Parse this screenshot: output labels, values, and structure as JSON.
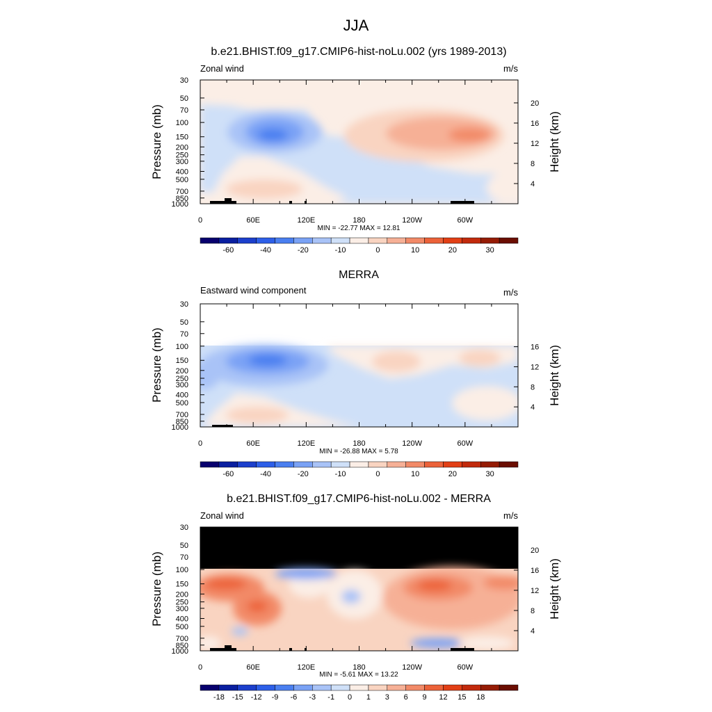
{
  "page": {
    "title": "JJA"
  },
  "chart_data": [
    {
      "type": "heatmap",
      "title": "b.e21.BHIST.f09_g17.CMIP6-hist-noLu.002 (yrs 1989-2013)",
      "left_label": "Zonal wind",
      "units": "m/s",
      "ylabel": "Pressure (mb)",
      "ylabel_right": "Height (km)",
      "x_ticks": [
        "0",
        "60E",
        "120E",
        "180",
        "120W",
        "60W"
      ],
      "y_ticks": [
        "30",
        "50",
        "70",
        "100",
        "150",
        "200",
        "250",
        "300",
        "400",
        "500",
        "700",
        "850",
        "1000"
      ],
      "y_ticks_right": [
        "20",
        "16",
        "12",
        "8",
        "4"
      ],
      "xlim": [
        0,
        360
      ],
      "ylim_mb": [
        1000,
        30
      ],
      "stats": "MIN = -22.77  MAX =  12.81",
      "min": -22.77,
      "max": 12.81,
      "colorbar_labels": [
        "-60",
        "-40",
        "-20",
        "-10",
        "0",
        "10",
        "20",
        "30"
      ],
      "colorbar_colors": [
        "#08006e",
        "#0a1fa0",
        "#1c3fcc",
        "#2d5fe8",
        "#4a7ff0",
        "#7aa2f5",
        "#a9c3f7",
        "#cfe0f8",
        "#fbeee6",
        "#f9d4c1",
        "#f6b096",
        "#f28a68",
        "#ec6239",
        "#e23f15",
        "#c22a0c",
        "#951c05",
        "#6b0e02"
      ],
      "blobs": [
        {
          "lon": 0,
          "mb_top": 70,
          "mb_bottom": 1000,
          "lon_end": 360,
          "value": -1,
          "shape": "background"
        },
        {
          "lon": 85,
          "mb": 140,
          "value": -22.77
        },
        {
          "lon": 95,
          "mb": 200,
          "value": -12
        },
        {
          "lon": 190,
          "mb": 150,
          "value": 5
        },
        {
          "lon": 290,
          "mb": 150,
          "value": 12.81
        },
        {
          "lon": 65,
          "mb": 700,
          "value": 8
        },
        {
          "lon": 40,
          "mb": 350,
          "value": 4
        }
      ]
    },
    {
      "type": "heatmap",
      "title": "MERRA",
      "left_label": "Eastward wind component",
      "units": "m/s",
      "ylabel": "Pressure (mb)",
      "ylabel_right": "Height (km)",
      "x_ticks": [
        "0",
        "60E",
        "120E",
        "180",
        "120W",
        "60W"
      ],
      "y_ticks": [
        "30",
        "50",
        "70",
        "100",
        "150",
        "200",
        "250",
        "300",
        "400",
        "500",
        "700",
        "850",
        "1000"
      ],
      "y_ticks_right": [
        "16",
        "12",
        "8",
        "4"
      ],
      "xlim": [
        0,
        360
      ],
      "ylim_mb": [
        1000,
        30
      ],
      "stats": "MIN = -26.88  MAX =   5.78",
      "min": -26.88,
      "max": 5.78,
      "colorbar_labels": [
        "-60",
        "-40",
        "-20",
        "-10",
        "0",
        "10",
        "20",
        "30"
      ],
      "blobs": [
        {
          "lon": 0,
          "mb_top": 100,
          "mb_bottom": 1000,
          "lon_end": 360,
          "value": -1,
          "shape": "background"
        },
        {
          "lon": 80,
          "mb": 150,
          "value": -26.88
        },
        {
          "lon": 60,
          "mb": 180,
          "value": -15
        },
        {
          "lon": 210,
          "mb": 140,
          "value": 5.78
        },
        {
          "lon": 330,
          "mb": 180,
          "value": 4
        },
        {
          "lon": 60,
          "mb": 700,
          "value": 5
        }
      ]
    },
    {
      "type": "heatmap",
      "title": "b.e21.BHIST.f09_g17.CMIP6-hist-noLu.002 - MERRA",
      "left_label": "Zonal wind",
      "units": "m/s",
      "ylabel": "Pressure (mb)",
      "ylabel_right": "Height (km)",
      "x_ticks": [
        "0",
        "60E",
        "120E",
        "180",
        "120W",
        "60W"
      ],
      "y_ticks": [
        "30",
        "50",
        "70",
        "100",
        "150",
        "200",
        "250",
        "300",
        "400",
        "500",
        "700",
        "850",
        "1000"
      ],
      "y_ticks_right": [
        "20",
        "16",
        "12",
        "8",
        "4"
      ],
      "xlim": [
        0,
        360
      ],
      "ylim_mb": [
        1000,
        30
      ],
      "stats": "MIN = -5.61  MAX =  13.22",
      "min": -5.61,
      "max": 13.22,
      "colorbar_labels": [
        "-18",
        "-15",
        "-12",
        "-9",
        "-6",
        "-3",
        "-1",
        "0",
        "1",
        "3",
        "6",
        "9",
        "12",
        "15",
        "18"
      ],
      "colorbar_colors": [
        "#08006e",
        "#0a1fa0",
        "#1c3fcc",
        "#2d5fe8",
        "#4a7ff0",
        "#7aa2f5",
        "#a9c3f7",
        "#cfe0f8",
        "#fbeee6",
        "#f9d4c1",
        "#f6b096",
        "#f28a68",
        "#ec6239",
        "#e23f15",
        "#c22a0c",
        "#951c05",
        "#6b0e02"
      ],
      "blobs": [
        {
          "lon": 0,
          "mb_top": 100,
          "mb_bottom": 1000,
          "lon_end": 360,
          "value": 2,
          "shape": "background"
        },
        {
          "lon": 30,
          "mb": 150,
          "value": 13.22
        },
        {
          "lon": 70,
          "mb": 300,
          "value": 9
        },
        {
          "lon": 270,
          "mb": 150,
          "value": 12
        },
        {
          "lon": 330,
          "mb": 150,
          "value": 9
        },
        {
          "lon": 110,
          "mb": 110,
          "value": -5.61
        },
        {
          "lon": 180,
          "mb": 170,
          "value": -3
        },
        {
          "lon": 260,
          "mb": 820,
          "value": -4
        }
      ]
    }
  ]
}
